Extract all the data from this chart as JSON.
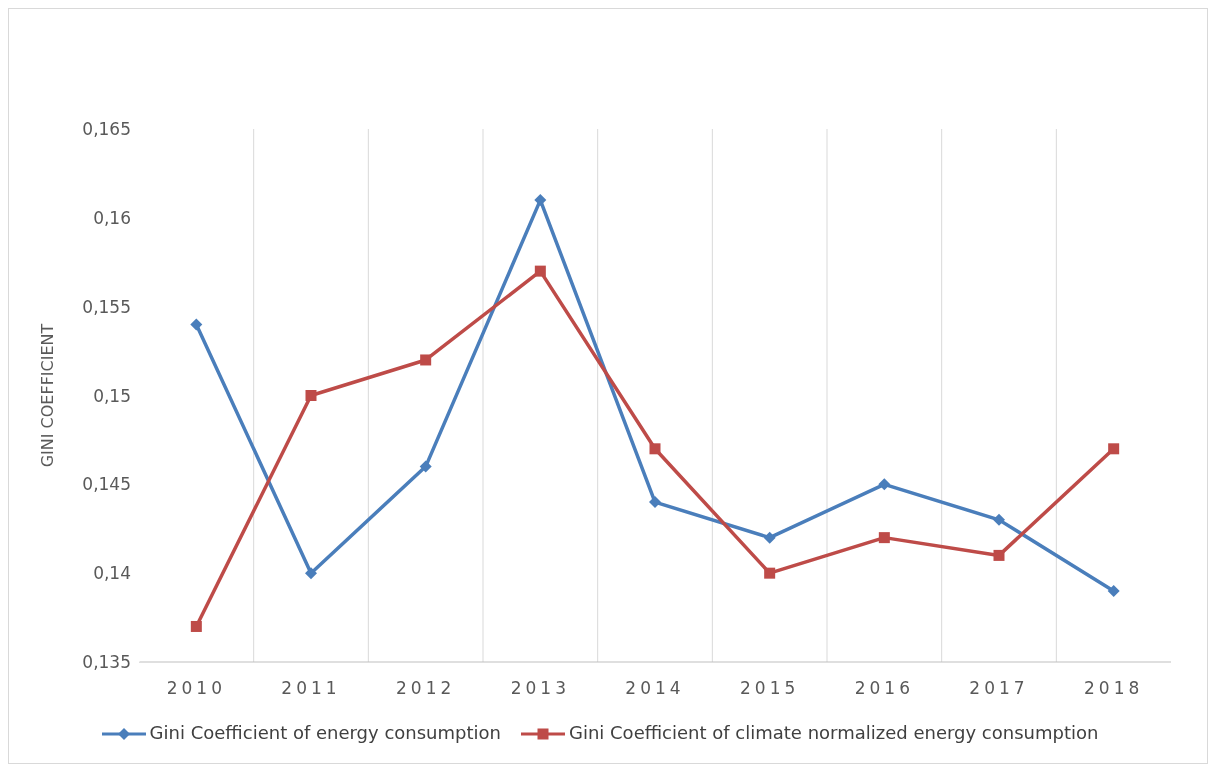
{
  "chart_data": {
    "type": "line",
    "ylabel": "GINI COEFFICIENT",
    "categories": [
      "2010",
      "2011",
      "2012",
      "2013",
      "2014",
      "2015",
      "2016",
      "2017",
      "2018"
    ],
    "series": [
      {
        "name": "Gini Coefficient of energy consumption",
        "color": "#4a7ebb",
        "marker": "diamond",
        "values": [
          0.154,
          0.14,
          0.146,
          0.161,
          0.144,
          0.142,
          0.145,
          0.143,
          0.139
        ]
      },
      {
        "name": "Gini Coefficient of climate normalized energy consumption",
        "color": "#be4b48",
        "marker": "square",
        "values": [
          0.137,
          0.15,
          0.152,
          0.157,
          0.147,
          0.14,
          0.142,
          0.141,
          0.147
        ]
      }
    ],
    "ylim": [
      0.135,
      0.165
    ],
    "yticks": [
      {
        "value": 0.135,
        "label": "0,135"
      },
      {
        "value": 0.14,
        "label": "0,14"
      },
      {
        "value": 0.145,
        "label": "0,145"
      },
      {
        "value": 0.15,
        "label": "0,15"
      },
      {
        "value": 0.155,
        "label": "0,155"
      },
      {
        "value": 0.16,
        "label": "0,16"
      },
      {
        "value": 0.165,
        "label": "0,165"
      }
    ],
    "grid": "x",
    "legend": "bottom",
    "line_style": "solid"
  }
}
